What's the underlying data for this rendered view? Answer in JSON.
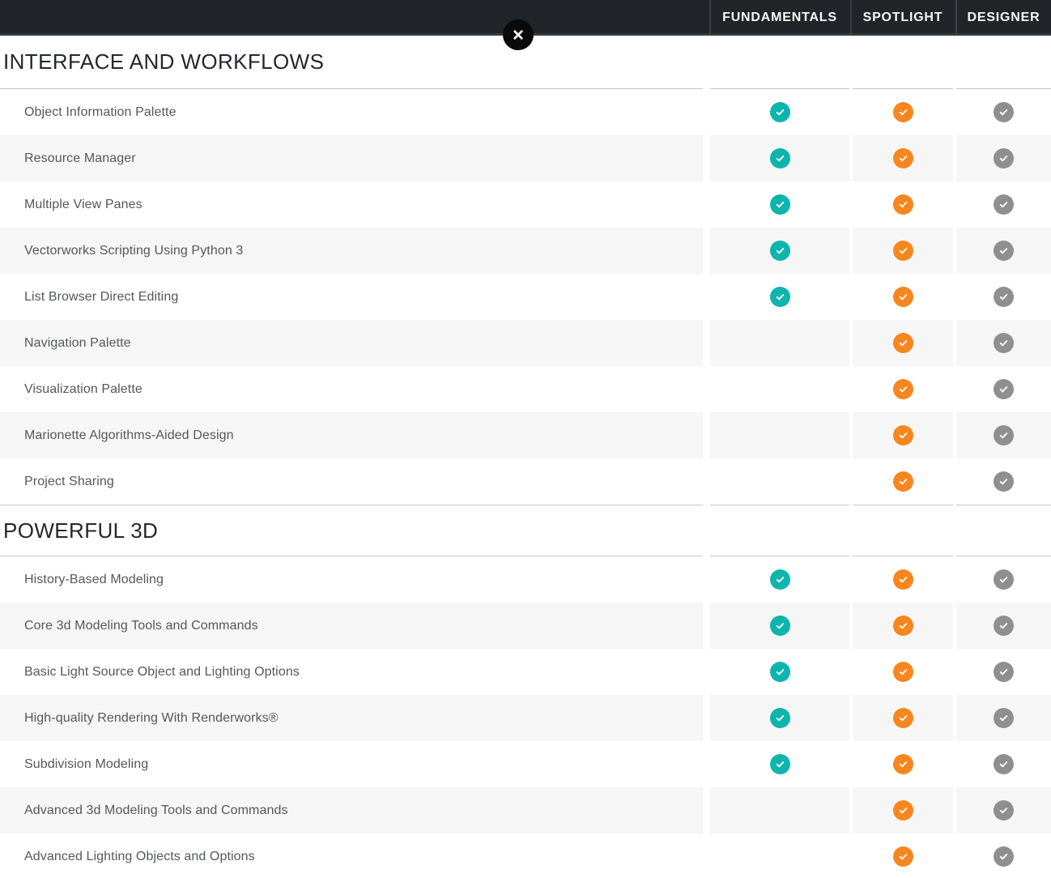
{
  "topbar": {
    "background": "#212529",
    "columns": [
      {
        "label": "FUNDAMENTALS",
        "check_color": "#0db5ac"
      },
      {
        "label": "SPOTLIGHT",
        "check_color": "#f8861e"
      },
      {
        "label": "DESIGNER",
        "check_color": "#8f8f8f"
      }
    ]
  },
  "close_button": {
    "icon": "close-icon",
    "glyph": "✕"
  },
  "check_badge": {
    "icon": "check-icon",
    "glyph": "✓",
    "mark_color": "#ffffff"
  },
  "colors": {
    "row_alt_background": "#f6f6f6",
    "divider": "#c6c6c6",
    "section_title_text": "#23272e",
    "row_label_text": "#54575c"
  },
  "sections": [
    {
      "title": "INTERFACE AND WORKFLOWS",
      "rows": [
        {
          "label": "Object Information Palette",
          "available": [
            true,
            true,
            true
          ]
        },
        {
          "label": "Resource Manager",
          "available": [
            true,
            true,
            true
          ]
        },
        {
          "label": "Multiple View Panes",
          "available": [
            true,
            true,
            true
          ]
        },
        {
          "label": "Vectorworks Scripting Using Python 3",
          "available": [
            true,
            true,
            true
          ]
        },
        {
          "label": "List Browser Direct Editing",
          "available": [
            true,
            true,
            true
          ]
        },
        {
          "label": "Navigation Palette",
          "available": [
            false,
            true,
            true
          ]
        },
        {
          "label": "Visualization Palette",
          "available": [
            false,
            true,
            true
          ]
        },
        {
          "label": "Marionette Algorithms-Aided Design",
          "available": [
            false,
            true,
            true
          ]
        },
        {
          "label": "Project Sharing",
          "available": [
            false,
            true,
            true
          ]
        }
      ]
    },
    {
      "title": "POWERFUL 3D",
      "rows": [
        {
          "label": "History-Based Modeling",
          "available": [
            true,
            true,
            true
          ]
        },
        {
          "label": "Core 3d Modeling Tools and Commands",
          "available": [
            true,
            true,
            true
          ]
        },
        {
          "label": "Basic Light Source Object and Lighting Options",
          "available": [
            true,
            true,
            true
          ]
        },
        {
          "label": "High-quality Rendering With Renderworks®",
          "available": [
            true,
            true,
            true
          ]
        },
        {
          "label": "Subdivision Modeling",
          "available": [
            true,
            true,
            true
          ]
        },
        {
          "label": "Advanced 3d Modeling Tools and Commands",
          "available": [
            false,
            true,
            true
          ]
        },
        {
          "label": "Advanced Lighting Objects and Options",
          "available": [
            false,
            true,
            true
          ]
        }
      ]
    }
  ]
}
